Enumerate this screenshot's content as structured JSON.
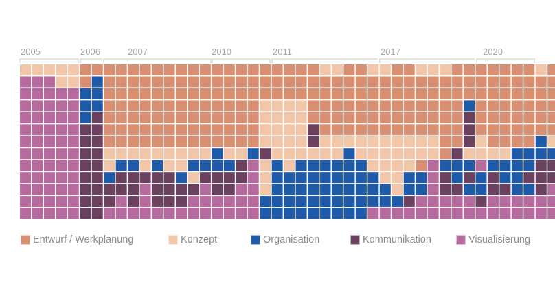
{
  "chart_data": {
    "type": "heatmap",
    "title": "",
    "categories": [
      {
        "key": "E",
        "name": "Entwurf / Werkplanung",
        "color": "#d98f72"
      },
      {
        "key": "K",
        "name": "Konzept",
        "color": "#f2c7a9"
      },
      {
        "key": "O",
        "name": "Organisation",
        "color": "#1f5ba8"
      },
      {
        "key": "M",
        "name": "Kommunikation",
        "color": "#6a4260"
      },
      {
        "key": "V",
        "name": "Visualisierung",
        "color": "#b76a9e"
      }
    ],
    "year_labels": [
      "2005",
      "2006",
      "2007",
      "2010",
      "2011",
      "2017",
      "2020"
    ],
    "grid": [
      "KKKKKEEEEEEEEEEEEEEEEEEEEKKEEKKEEKKKEEEEEEEKEEEE",
      "VVVKKEOEEEEEEEEEEEEEEEEEEEEEEEEEEEEEEEEEEEEEEEKE",
      "VVVVVOOEEEEEEEEEEEEEEEEEEEEEEEEEEEEEEEEEEEEEEKKK",
      "VVVVVOOEEEEEEEEEEEEEKKKKEEEEEEEEEEEEEOEEEEEEEKKO",
      "VVVVVOMEEEEEEEEEEEEEKKKKEEEEEEEEEEEEEMEEEEEEEKOM",
      "VVVVVMMEEEEEEEEEEEEEKKKKMEEEEEEEEEEEEMEEEEEEEOOM",
      "VVVVVMMEEEEEEEEEEEEEKKKKMKKKKKKKKKKEEMKEEEEOKOMM",
      "VVVVVMMKKKKKKKKKOKKOMKKKKKKOKKKKKKKEMKKKKOOOOOMM",
      "VVVVVMMKOOKOKKOOOOMVKOKOOOOOOKKKKEVOOOVOOOOMMMO",
      "VVVVVMMOMMMMMOKMMMMVKOOOOOOOOOKKOOVMOMOMOOMMMMVV",
      "VVVVVMMMMMVMMMMVMMVVKOOOOOOOOOOKOOVMMOOMMOOMVVVV",
      "VVVVVMMMVMVMMMVVVVVVOOOOOOOOOOOOMVVVVVMVVVVVVVVV",
      "VVVVVMMVVVVVVVVVVVVVOOOOOOOOOVVVVVVVVVVVVVVVVVVV"
    ]
  }
}
